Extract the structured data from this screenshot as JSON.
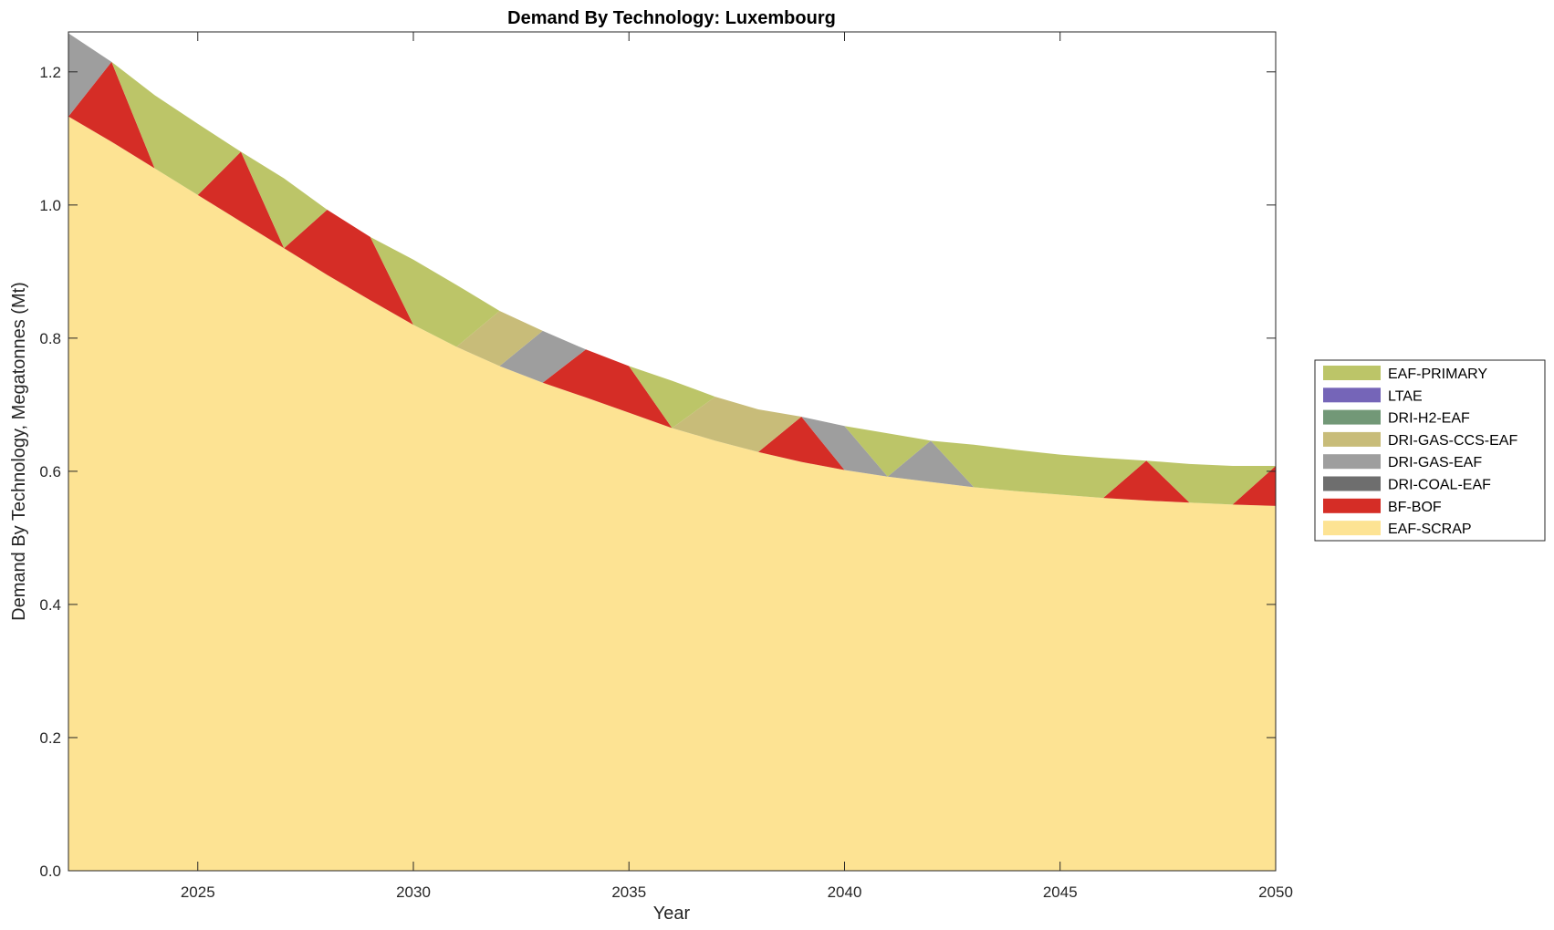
{
  "chart_data": {
    "type": "area",
    "title": "Demand By Technology: Luxembourg",
    "xlabel": "Year",
    "ylabel": "Demand By Technology, Megatonnes (Mt)",
    "xlim": [
      2022,
      2050
    ],
    "ylim": [
      0,
      1.26
    ],
    "xticks": [
      2025,
      2030,
      2035,
      2040,
      2045,
      2050
    ],
    "yticks": [
      "0.0",
      "0.2",
      "0.4",
      "0.6",
      "0.8",
      "1.0",
      "1.2"
    ],
    "x": [
      2022,
      2023,
      2024,
      2025,
      2026,
      2027,
      2028,
      2029,
      2030,
      2031,
      2032,
      2033,
      2034,
      2035,
      2036,
      2037,
      2038,
      2039,
      2040,
      2041,
      2042,
      2043,
      2044,
      2045,
      2046,
      2047,
      2048,
      2049,
      2050
    ],
    "series": [
      {
        "name": "EAF-SCRAP",
        "color": "#fde393",
        "values": [
          1.133,
          1.095,
          1.055,
          1.015,
          0.975,
          0.935,
          0.895,
          0.857,
          0.82,
          0.787,
          0.758,
          0.733,
          0.711,
          0.688,
          0.665,
          0.646,
          0.629,
          0.614,
          0.602,
          0.592,
          0.584,
          0.576,
          0.57,
          0.565,
          0.56,
          0.556,
          0.553,
          0.55,
          0.548
        ]
      },
      {
        "name": "BF-BOF",
        "color": "#d52d26",
        "values": [
          0,
          0.12,
          0,
          0,
          0.105,
          0,
          0.098,
          0.095,
          0,
          0,
          0,
          0,
          0.072,
          0.07,
          0,
          0,
          0,
          0.068,
          0,
          0,
          0,
          0,
          0,
          0,
          0,
          0.06,
          0,
          0,
          0.06
        ]
      },
      {
        "name": "DRI-COAL-EAF",
        "color": "#6e6e6e",
        "values": [
          0,
          0,
          0,
          0,
          0,
          0,
          0,
          0,
          0,
          0,
          0,
          0,
          0,
          0,
          0,
          0,
          0,
          0,
          0,
          0,
          0,
          0,
          0,
          0,
          0,
          0,
          0,
          0,
          0
        ]
      },
      {
        "name": "DRI-GAS-EAF",
        "color": "#9e9e9e",
        "values": [
          0.125,
          0,
          0,
          0,
          0,
          0,
          0,
          0,
          0,
          0,
          0,
          0.078,
          0,
          0,
          0,
          0,
          0,
          0,
          0.066,
          0,
          0.062,
          0,
          0,
          0,
          0,
          0,
          0,
          0,
          0
        ]
      },
      {
        "name": "DRI-GAS-CCS-EAF",
        "color": "#c8bc79",
        "values": [
          0,
          0,
          0,
          0,
          0,
          0,
          0,
          0,
          0,
          0,
          0.083,
          0,
          0,
          0,
          0,
          0.066,
          0.064,
          0,
          0,
          0,
          0,
          0,
          0,
          0,
          0,
          0,
          0,
          0,
          0
        ]
      },
      {
        "name": "DRI-H2-EAF",
        "color": "#729877",
        "values": [
          0,
          0,
          0,
          0,
          0,
          0,
          0,
          0,
          0,
          0,
          0,
          0,
          0,
          0,
          0,
          0,
          0,
          0,
          0,
          0,
          0,
          0,
          0,
          0,
          0,
          0,
          0,
          0,
          0
        ]
      },
      {
        "name": "LTAE",
        "color": "#7565b8",
        "values": [
          0,
          0,
          0,
          0,
          0,
          0,
          0,
          0,
          0,
          0,
          0,
          0,
          0,
          0,
          0,
          0,
          0,
          0,
          0,
          0,
          0,
          0,
          0,
          0,
          0,
          0,
          0,
          0,
          0
        ]
      },
      {
        "name": "EAF-PRIMARY",
        "color": "#bcc568",
        "values": [
          0,
          0,
          0.11,
          0.107,
          0,
          0.105,
          0,
          0,
          0.098,
          0.093,
          0,
          0,
          0,
          0,
          0.071,
          0,
          0,
          0,
          0,
          0.065,
          0,
          0.064,
          0.062,
          0.06,
          0.06,
          0,
          0.058,
          0.058,
          0
        ]
      }
    ],
    "legend": {
      "placement": "right",
      "entries": [
        "EAF-PRIMARY",
        "LTAE",
        "DRI-H2-EAF",
        "DRI-GAS-CCS-EAF",
        "DRI-GAS-EAF",
        "DRI-COAL-EAF",
        "BF-BOF",
        "EAF-SCRAP"
      ]
    },
    "grid": false
  }
}
